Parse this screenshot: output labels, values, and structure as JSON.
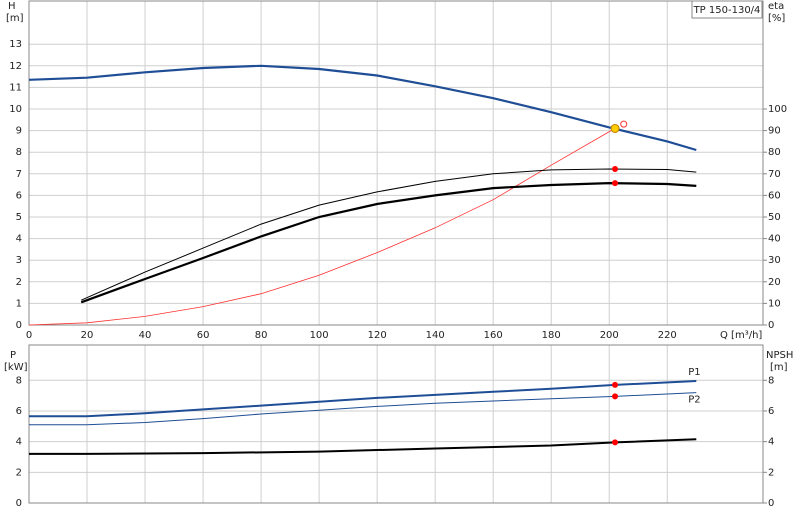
{
  "chart_data": [
    {
      "type": "line",
      "title": "TP 150-130/4",
      "y_label": "H",
      "y_unit": "[m]",
      "y2_label": "eta",
      "y2_unit": "[%]",
      "x_label": "Q [m³/h]",
      "xlim": [
        0,
        253
      ],
      "xticks": [
        0,
        20,
        40,
        60,
        80,
        100,
        120,
        140,
        160,
        180,
        200,
        220
      ],
      "xtick_labels": true,
      "ylim": [
        0,
        15
      ],
      "yticks": [
        0,
        1,
        2,
        3,
        4,
        5,
        6,
        7,
        8,
        9,
        10,
        11,
        12,
        13
      ],
      "y2lim": [
        0,
        150
      ],
      "y2ticks": [
        0,
        10,
        20,
        30,
        40,
        50,
        60,
        70,
        80,
        90,
        100
      ],
      "grid": true,
      "series": [
        {
          "color": "#1f4e96",
          "width": 2.2,
          "x": [
            0,
            20,
            40,
            60,
            80,
            100,
            120,
            140,
            160,
            180,
            200,
            220,
            230
          ],
          "values": [
            11.35,
            11.45,
            11.7,
            11.9,
            12.0,
            11.85,
            11.55,
            11.05,
            10.5,
            9.85,
            9.15,
            8.5,
            8.1
          ]
        },
        {
          "color": "#ff3030",
          "width": 0.8,
          "x": [
            0,
            20,
            40,
            60,
            80,
            100,
            120,
            140,
            160,
            180,
            202
          ],
          "values": [
            0,
            0.1,
            0.4,
            0.85,
            1.45,
            2.3,
            3.35,
            4.5,
            5.8,
            7.4,
            9.1
          ]
        },
        {
          "color": "#000000",
          "width": 1,
          "axis": "y2",
          "x": [
            18,
            40,
            60,
            80,
            100,
            120,
            140,
            160,
            180,
            200,
            220,
            230
          ],
          "values": [
            11.5,
            24.5,
            35.6,
            46.7,
            55.5,
            61.6,
            66.5,
            70,
            71.8,
            72.2,
            72,
            70.8
          ]
        },
        {
          "color": "#000000",
          "width": 2.2,
          "axis": "y2",
          "x": [
            18,
            40,
            60,
            80,
            100,
            120,
            140,
            160,
            180,
            200,
            220,
            230
          ],
          "values": [
            10.5,
            21.3,
            31,
            41,
            50,
            56,
            60,
            63.4,
            64.8,
            65.7,
            65.3,
            64.4
          ]
        },
        {
          "color": "#ffcc00",
          "marker": "dot",
          "size": 4,
          "x": [
            202
          ],
          "values": [
            9.1
          ]
        },
        {
          "color": "#ff3030",
          "marker": "ring",
          "size": 3,
          "x": [
            205
          ],
          "values": [
            9.3
          ]
        },
        {
          "color": "#ff0000",
          "marker": "dot",
          "size": 3,
          "axis": "y2",
          "x": [
            202,
            202
          ],
          "values": [
            72.2,
            65.7
          ]
        }
      ]
    },
    {
      "type": "line",
      "y_label": "P",
      "y_unit": "[kW]",
      "y2_label": "NPSH",
      "y2_unit": "[m]",
      "xlim": [
        0,
        253
      ],
      "xticks": [
        0,
        20,
        40,
        60,
        80,
        100,
        120,
        140,
        160,
        180,
        200,
        220
      ],
      "xtick_labels": false,
      "ylim": [
        0,
        10.3
      ],
      "yticks": [
        0,
        2,
        4,
        6,
        8
      ],
      "y2lim": [
        0,
        10.3
      ],
      "y2ticks": [
        0,
        2,
        4,
        6,
        8
      ],
      "grid": true,
      "series": [
        {
          "name": "P1",
          "color": "#1f4e96",
          "width": 2,
          "x": [
            0,
            20,
            40,
            60,
            80,
            100,
            120,
            140,
            160,
            180,
            202,
            230
          ],
          "values": [
            5.65,
            5.65,
            5.85,
            6.1,
            6.35,
            6.6,
            6.85,
            7.05,
            7.25,
            7.45,
            7.7,
            7.95
          ]
        },
        {
          "name": "P2",
          "color": "#1f4e96",
          "width": 1,
          "x": [
            0,
            20,
            40,
            60,
            80,
            100,
            120,
            140,
            160,
            180,
            202,
            230
          ],
          "values": [
            5.1,
            5.1,
            5.25,
            5.5,
            5.8,
            6.05,
            6.3,
            6.5,
            6.65,
            6.8,
            6.95,
            7.2
          ]
        },
        {
          "color": "#000000",
          "width": 2,
          "axis": "y2",
          "x": [
            0,
            20,
            60,
            100,
            140,
            180,
            202,
            230
          ],
          "values": [
            3.2,
            3.2,
            3.25,
            3.35,
            3.55,
            3.75,
            3.95,
            4.15
          ]
        },
        {
          "color": "#ff0000",
          "marker": "dot",
          "size": 3,
          "x": [
            202,
            202
          ],
          "values": [
            7.7,
            6.95
          ]
        },
        {
          "color": "#ff0000",
          "marker": "dot",
          "size": 3,
          "axis": "y2",
          "x": [
            202
          ],
          "values": [
            3.95
          ]
        }
      ]
    }
  ]
}
